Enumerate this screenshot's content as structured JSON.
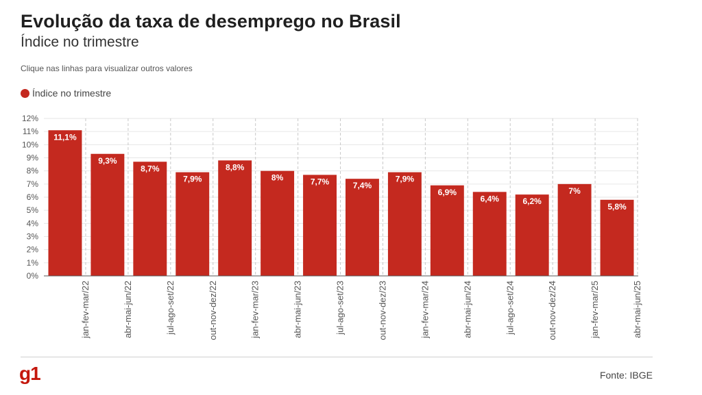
{
  "header": {
    "title": "Evolução da taxa de desemprego no Brasil",
    "subtitle": "Índice no trimestre",
    "hint": "Clique nas linhas para visualizar outros valores"
  },
  "legend": {
    "label": "Índice no trimestre",
    "color": "#c4291f"
  },
  "footer": {
    "logo": "g1",
    "source": "Fonte: IBGE"
  },
  "colors": {
    "bar": "#c4291f",
    "brand": "#c4170c",
    "grid": "#e6e6e6",
    "category_guide": "#c8c8c8"
  },
  "chart_data": {
    "type": "bar",
    "title": "Evolução da taxa de desemprego no Brasil",
    "subtitle": "Índice no trimestre",
    "categories": [
      "jan-fev-mar/22",
      "abr-mai-jun/22",
      "jul-ago-set/22",
      "out-nov-dez/22",
      "jan-fev-mar/23",
      "abr-mai-jun/23",
      "jul-ago-set/23",
      "out-nov-dez/23",
      "jan-fev-mar/24",
      "abr-mai-jun/24",
      "jul-ago-set/24",
      "out-nov-dez/24",
      "jan-fev-mar/25",
      "abr-mai-jun/25"
    ],
    "series": [
      {
        "name": "Índice no trimestre",
        "values": [
          11.1,
          9.3,
          8.7,
          7.9,
          8.8,
          8.0,
          7.7,
          7.4,
          7.9,
          6.9,
          6.4,
          6.2,
          7.0,
          5.8
        ],
        "labels": [
          "11,1%",
          "9,3%",
          "8,7%",
          "7,9%",
          "8,8%",
          "8%",
          "7,7%",
          "7,4%",
          "7,9%",
          "6,9%",
          "6,4%",
          "6,2%",
          "7%",
          "5,8%"
        ]
      }
    ],
    "y_ticks": [
      0,
      1,
      2,
      3,
      4,
      5,
      6,
      7,
      8,
      9,
      10,
      11,
      12
    ],
    "y_tick_labels": [
      "0%",
      "1%",
      "2%",
      "3%",
      "4%",
      "5%",
      "6%",
      "7%",
      "8%",
      "9%",
      "10%",
      "11%",
      "12%"
    ],
    "ylim": [
      0,
      12
    ],
    "grid": true,
    "legend_position": "top-left"
  }
}
